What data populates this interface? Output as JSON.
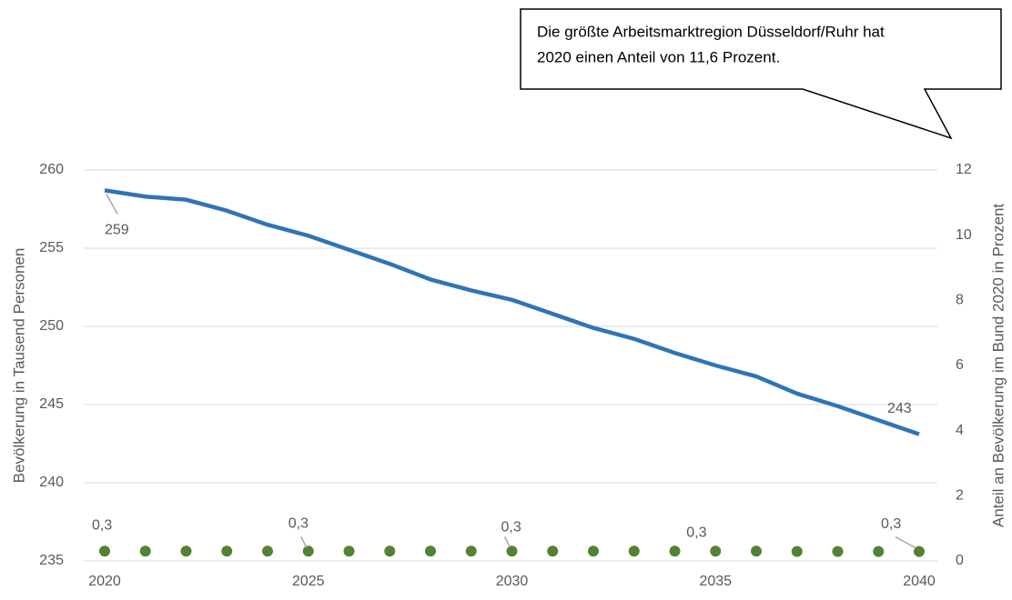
{
  "chart_data": {
    "type": "line",
    "annotation": [
      "Die größte Arbeitsmarktregion Düsseldorf/Ruhr hat",
      "2020 einen Anteil von 11,6 Prozent."
    ],
    "y_label": "Bevölkerung in Tausend Personen",
    "y2_label": "Anteil an Bevölkerung im Bund 2020 in Prozent",
    "x": [
      2020,
      2021,
      2022,
      2023,
      2024,
      2025,
      2026,
      2027,
      2028,
      2029,
      2030,
      2031,
      2032,
      2033,
      2034,
      2035,
      2036,
      2037,
      2038,
      2039,
      2040
    ],
    "xlim": [
      2020,
      2040
    ],
    "xticks": [
      2020,
      2025,
      2030,
      2035,
      2040
    ],
    "ylim": [
      235,
      260
    ],
    "yticks": [
      235,
      240,
      245,
      250,
      255,
      260
    ],
    "y2lim": [
      0,
      12
    ],
    "y2ticks": [
      0,
      2,
      4,
      6,
      8,
      10,
      12
    ],
    "grid": true,
    "series": [
      {
        "color": "#2e75b6",
        "values": [
          258.7,
          258.3,
          258.1,
          257.4,
          256.5,
          255.8,
          254.9,
          254.0,
          253.0,
          252.3,
          251.7,
          250.8,
          249.9,
          249.2,
          248.3,
          247.5,
          246.8,
          245.7,
          244.9,
          244.0,
          243.1
        ],
        "value_labels": [
          "259",
          null,
          null,
          null,
          null,
          null,
          null,
          null,
          null,
          null,
          null,
          null,
          null,
          null,
          null,
          null,
          null,
          null,
          null,
          null,
          "243"
        ]
      },
      {
        "color": "#548235",
        "axis": "y2",
        "values": [
          0.3,
          0.3,
          0.3,
          0.3,
          0.3,
          0.3,
          0.3,
          0.3,
          0.3,
          0.3,
          0.3,
          0.3,
          0.3,
          0.3,
          0.3,
          0.3,
          0.3,
          0.29,
          0.29,
          0.29,
          0.29
        ],
        "value_labels": [
          "0,3",
          null,
          null,
          null,
          null,
          "0,3",
          null,
          null,
          null,
          null,
          "0,3",
          null,
          null,
          null,
          null,
          "0,3",
          null,
          null,
          null,
          null,
          "0,3"
        ]
      }
    ]
  }
}
